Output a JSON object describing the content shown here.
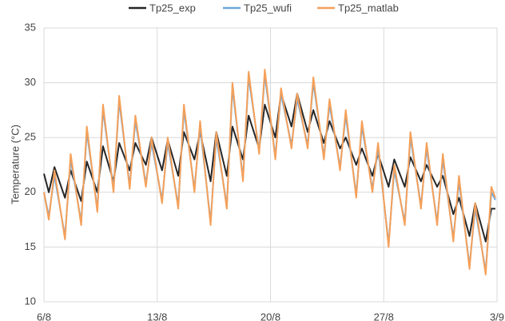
{
  "chart_data": {
    "type": "line",
    "y_label": "Temperature (°C)",
    "x": [
      6,
      6.3,
      6.65,
      7.3,
      7.65,
      8.3,
      8.65,
      9.3,
      9.65,
      10.3,
      10.65,
      11.3,
      11.65,
      12.3,
      12.65,
      13.3,
      13.65,
      14.3,
      14.65,
      15.3,
      15.65,
      16.3,
      16.65,
      17.3,
      17.65,
      18.3,
      18.65,
      19.3,
      19.65,
      20.3,
      20.65,
      21.3,
      21.65,
      22.3,
      22.65,
      23.3,
      23.65,
      24.3,
      24.65,
      25.3,
      25.65,
      26.3,
      26.65,
      27.3,
      27.65,
      28.3,
      28.65,
      29.3,
      29.65,
      30.3,
      30.65,
      31.3,
      31.65,
      32.3,
      32.65,
      33.3,
      33.65,
      33.9
    ],
    "series": [
      {
        "name": "Tp25_exp",
        "color": "#262626",
        "values": [
          21.7,
          20,
          22.3,
          19.5,
          22,
          19.2,
          22.8,
          20,
          24.2,
          21,
          24.5,
          22,
          24.5,
          22.5,
          25,
          22,
          24.8,
          21.5,
          25.5,
          23,
          25.5,
          21,
          25.5,
          21.5,
          26,
          23,
          27,
          24,
          28,
          25,
          29,
          26,
          29,
          25.5,
          27.5,
          24.5,
          26.5,
          24,
          25,
          22.5,
          24,
          21.5,
          23.5,
          20.5,
          23,
          20.5,
          23.2,
          21,
          22.5,
          20.5,
          21.5,
          18,
          19.5,
          16,
          19,
          15.5,
          18.5,
          18.5
        ]
      },
      {
        "name": "Tp25_wufi",
        "color": "#6fa8dc",
        "values": [
          20,
          17.8,
          21.5,
          16,
          23,
          17.3,
          25.5,
          18.5,
          27.5,
          20.3,
          28.3,
          20.6,
          26.5,
          20.8,
          24.5,
          19.3,
          24.5,
          18.8,
          27.5,
          20.3,
          26,
          17.3,
          25,
          18.8,
          29.5,
          21.3,
          30.5,
          23.8,
          30.7,
          23.3,
          29,
          24.3,
          28.5,
          24.3,
          30,
          23.3,
          28,
          22.3,
          27,
          19.8,
          26,
          20.3,
          24,
          15.3,
          22,
          17.3,
          25,
          18.8,
          24,
          17.3,
          23,
          15.8,
          21,
          13.3,
          18.5,
          12.8,
          20,
          19.3
        ]
      },
      {
        "name": "Tp25_matlab",
        "color": "#f5a05a",
        "values": [
          20,
          17.5,
          22,
          15.7,
          23.5,
          17,
          26,
          18.2,
          28,
          20,
          28.8,
          20.3,
          27,
          20.5,
          25,
          19,
          25,
          18.5,
          28,
          20,
          26.5,
          17,
          25.5,
          18.5,
          30,
          21,
          31,
          23.5,
          31.2,
          23,
          29.5,
          24,
          29,
          24,
          30.5,
          23,
          28.5,
          22,
          27.5,
          19.5,
          26.5,
          20,
          24.5,
          15,
          22.5,
          17,
          25.5,
          18.5,
          24.5,
          17,
          23.5,
          15.5,
          21.5,
          13,
          19,
          12.5,
          20.5,
          19.5
        ]
      }
    ],
    "xlim": [
      6,
      34
    ],
    "xticks": [
      {
        "value": 6,
        "label": "6/8"
      },
      {
        "value": 13,
        "label": "13/8"
      },
      {
        "value": 20,
        "label": "20/8"
      },
      {
        "value": 27,
        "label": "27/8"
      },
      {
        "value": 34,
        "label": "3/9"
      }
    ],
    "ylim": [
      10,
      35
    ],
    "yticks": [
      10,
      15,
      20,
      25,
      30,
      35
    ],
    "grid": true,
    "legend": "top"
  }
}
